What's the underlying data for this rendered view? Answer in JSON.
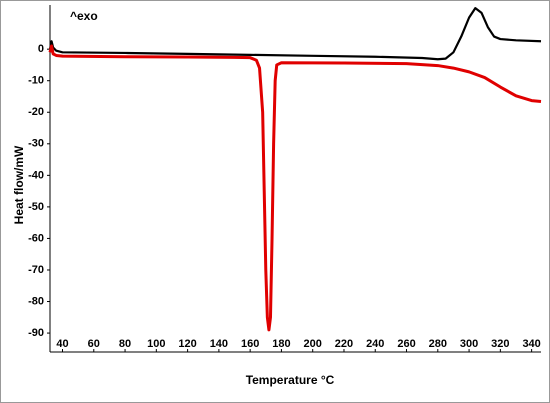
{
  "chart_data": {
    "type": "line",
    "x_label": "Temperature °C",
    "y_label": "Heat flow/mW",
    "annotation": "^exo",
    "xlim": [
      32,
      346
    ],
    "ylim": [
      -96,
      14
    ],
    "xticks": [
      40,
      60,
      80,
      100,
      120,
      140,
      160,
      180,
      200,
      220,
      240,
      260,
      280,
      300,
      320,
      340
    ],
    "yticks": [
      0,
      -10,
      -20,
      -30,
      -40,
      -50,
      -60,
      -70,
      -80,
      -90
    ],
    "grid": false,
    "series": [
      {
        "color": "#000000",
        "x": [
          32,
          33,
          34,
          36,
          40,
          80,
          120,
          160,
          200,
          240,
          270,
          280,
          285,
          290,
          295,
          300,
          304,
          308,
          312,
          316,
          320,
          330,
          346
        ],
        "values": [
          0,
          2.5,
          0.5,
          -0.5,
          -1,
          -1.2,
          -1.5,
          -1.8,
          -2.1,
          -2.4,
          -2.8,
          -3.2,
          -3,
          -1,
          4,
          10,
          13,
          11.5,
          7,
          4,
          3.2,
          2.8,
          2.5
        ]
      },
      {
        "color": "#e00000",
        "x": [
          32,
          33,
          34,
          36,
          40,
          80,
          120,
          150,
          160,
          164,
          166,
          168,
          169,
          170,
          171,
          172,
          173,
          174,
          175,
          176,
          177,
          180,
          220,
          260,
          280,
          290,
          300,
          310,
          320,
          330,
          340,
          346
        ],
        "values": [
          -1,
          1,
          -1.5,
          -2,
          -2.2,
          -2.4,
          -2.5,
          -2.6,
          -2.7,
          -3.5,
          -6,
          -20,
          -45,
          -70,
          -85,
          -89,
          -85,
          -60,
          -30,
          -10,
          -5,
          -4.3,
          -4.4,
          -4.6,
          -5.2,
          -6,
          -7.2,
          -9,
          -12,
          -14.8,
          -16.3,
          -16.6
        ]
      }
    ]
  }
}
